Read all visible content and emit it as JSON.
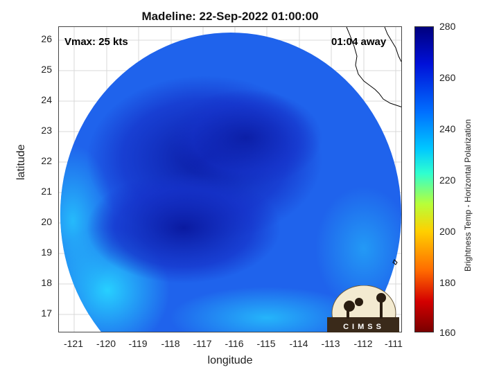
{
  "title": "Madeline: 22-Sep-2022 01:00:00",
  "annotations": {
    "vmax": "Vmax: 25 kts",
    "time_away": "01:04 away"
  },
  "axes": {
    "xlabel": "longitude",
    "ylabel": "latitude",
    "xticks": [
      "-121",
      "-120",
      "-119",
      "-118",
      "-117",
      "-116",
      "-115",
      "-114",
      "-113",
      "-112",
      "-111"
    ],
    "yticks": [
      "26",
      "25",
      "24",
      "23",
      "22",
      "21",
      "20",
      "19",
      "18",
      "17"
    ],
    "xlim": [
      -121.5,
      -110.9
    ],
    "ylim": [
      16.45,
      26.45
    ]
  },
  "colorbar": {
    "label": "Brightness Temp - Horizontal Polarization",
    "ticks": [
      "280",
      "260",
      "240",
      "220",
      "200",
      "180",
      "160"
    ],
    "range": [
      160,
      280
    ],
    "colors": [
      "#7a0000",
      "#d40000",
      "#ff6a00",
      "#ffd000",
      "#b7ff3a",
      "#2fffd0",
      "#00c8ff",
      "#0070ff",
      "#0010d8",
      "#00007e"
    ]
  },
  "logo": {
    "text": "CIMSS"
  },
  "colors": {
    "swath_bg": "#1f63ec",
    "swath_cold": "#0a26b8",
    "swath_warm": "#22b8ff",
    "coast": "#000000"
  }
}
